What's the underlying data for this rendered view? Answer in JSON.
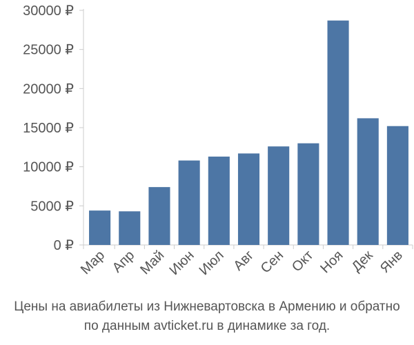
{
  "chart_data": {
    "type": "bar",
    "categories": [
      "Мар",
      "Апр",
      "Май",
      "Июн",
      "Июл",
      "Авг",
      "Сен",
      "Окт",
      "Ноя",
      "Дек",
      "Янв"
    ],
    "values": [
      4400,
      4300,
      7400,
      10800,
      11300,
      11700,
      12600,
      13000,
      28700,
      16200,
      15200
    ],
    "ylim": [
      0,
      30000
    ],
    "yticks": [
      0,
      5000,
      10000,
      15000,
      20000,
      25000,
      30000
    ],
    "ytick_labels": [
      "0 ₽",
      "5000 ₽",
      "10000 ₽",
      "15000 ₽",
      "20000 ₽",
      "25000 ₽",
      "30000 ₽"
    ],
    "grid": false,
    "bar_color": "#4d76a5",
    "axis_color": "#cccccc"
  },
  "caption": {
    "line1": "Цены на авиабилеты из Нижневартовска в Армению и обратно",
    "line2": "по данным avticket.ru в динамике за год."
  }
}
